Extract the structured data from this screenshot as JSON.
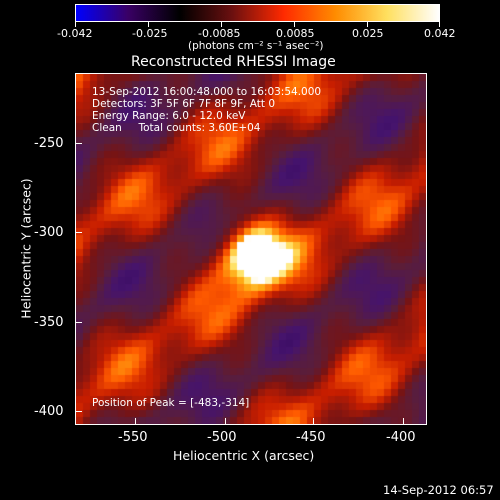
{
  "colors": {
    "bar_stops": [
      "#0000ff",
      "#3a0066",
      "#000000",
      "#6a1010",
      "#ff2a00",
      "#ff8c00",
      "#ffe060",
      "#ffffff"
    ]
  },
  "colorbar": {
    "ticks": [
      "-0.042",
      "-0.025",
      "-0.0085",
      "0.0085",
      "0.025",
      "0.042"
    ],
    "unit_label": "(photons cm⁻² s⁻¹ asec⁻²)"
  },
  "title": "Reconstructed RHESSI Image",
  "annotations": {
    "time_range": "13-Sep-2012 16:00:48.000 to 16:03:54.000",
    "detectors": "Detectors: 3F 5F 6F 7F 8F 9F, Att 0",
    "energy": "Energy Range: 6.0 - 12.0 keV",
    "clean": "Clean     Total counts: 3.60E+04",
    "peak": "Position of Peak = [-483,-314]"
  },
  "axes": {
    "xlabel": "Heliocentric X (arcsec)",
    "ylabel": "Heliocentric Y (arcsec)",
    "x_ticks": [
      "-550",
      "-500",
      "-450",
      "-400"
    ],
    "y_ticks": [
      "-250",
      "-300",
      "-350",
      "-400"
    ]
  },
  "footer": {
    "timestamp": "14-Sep-2012 06:57"
  }
}
